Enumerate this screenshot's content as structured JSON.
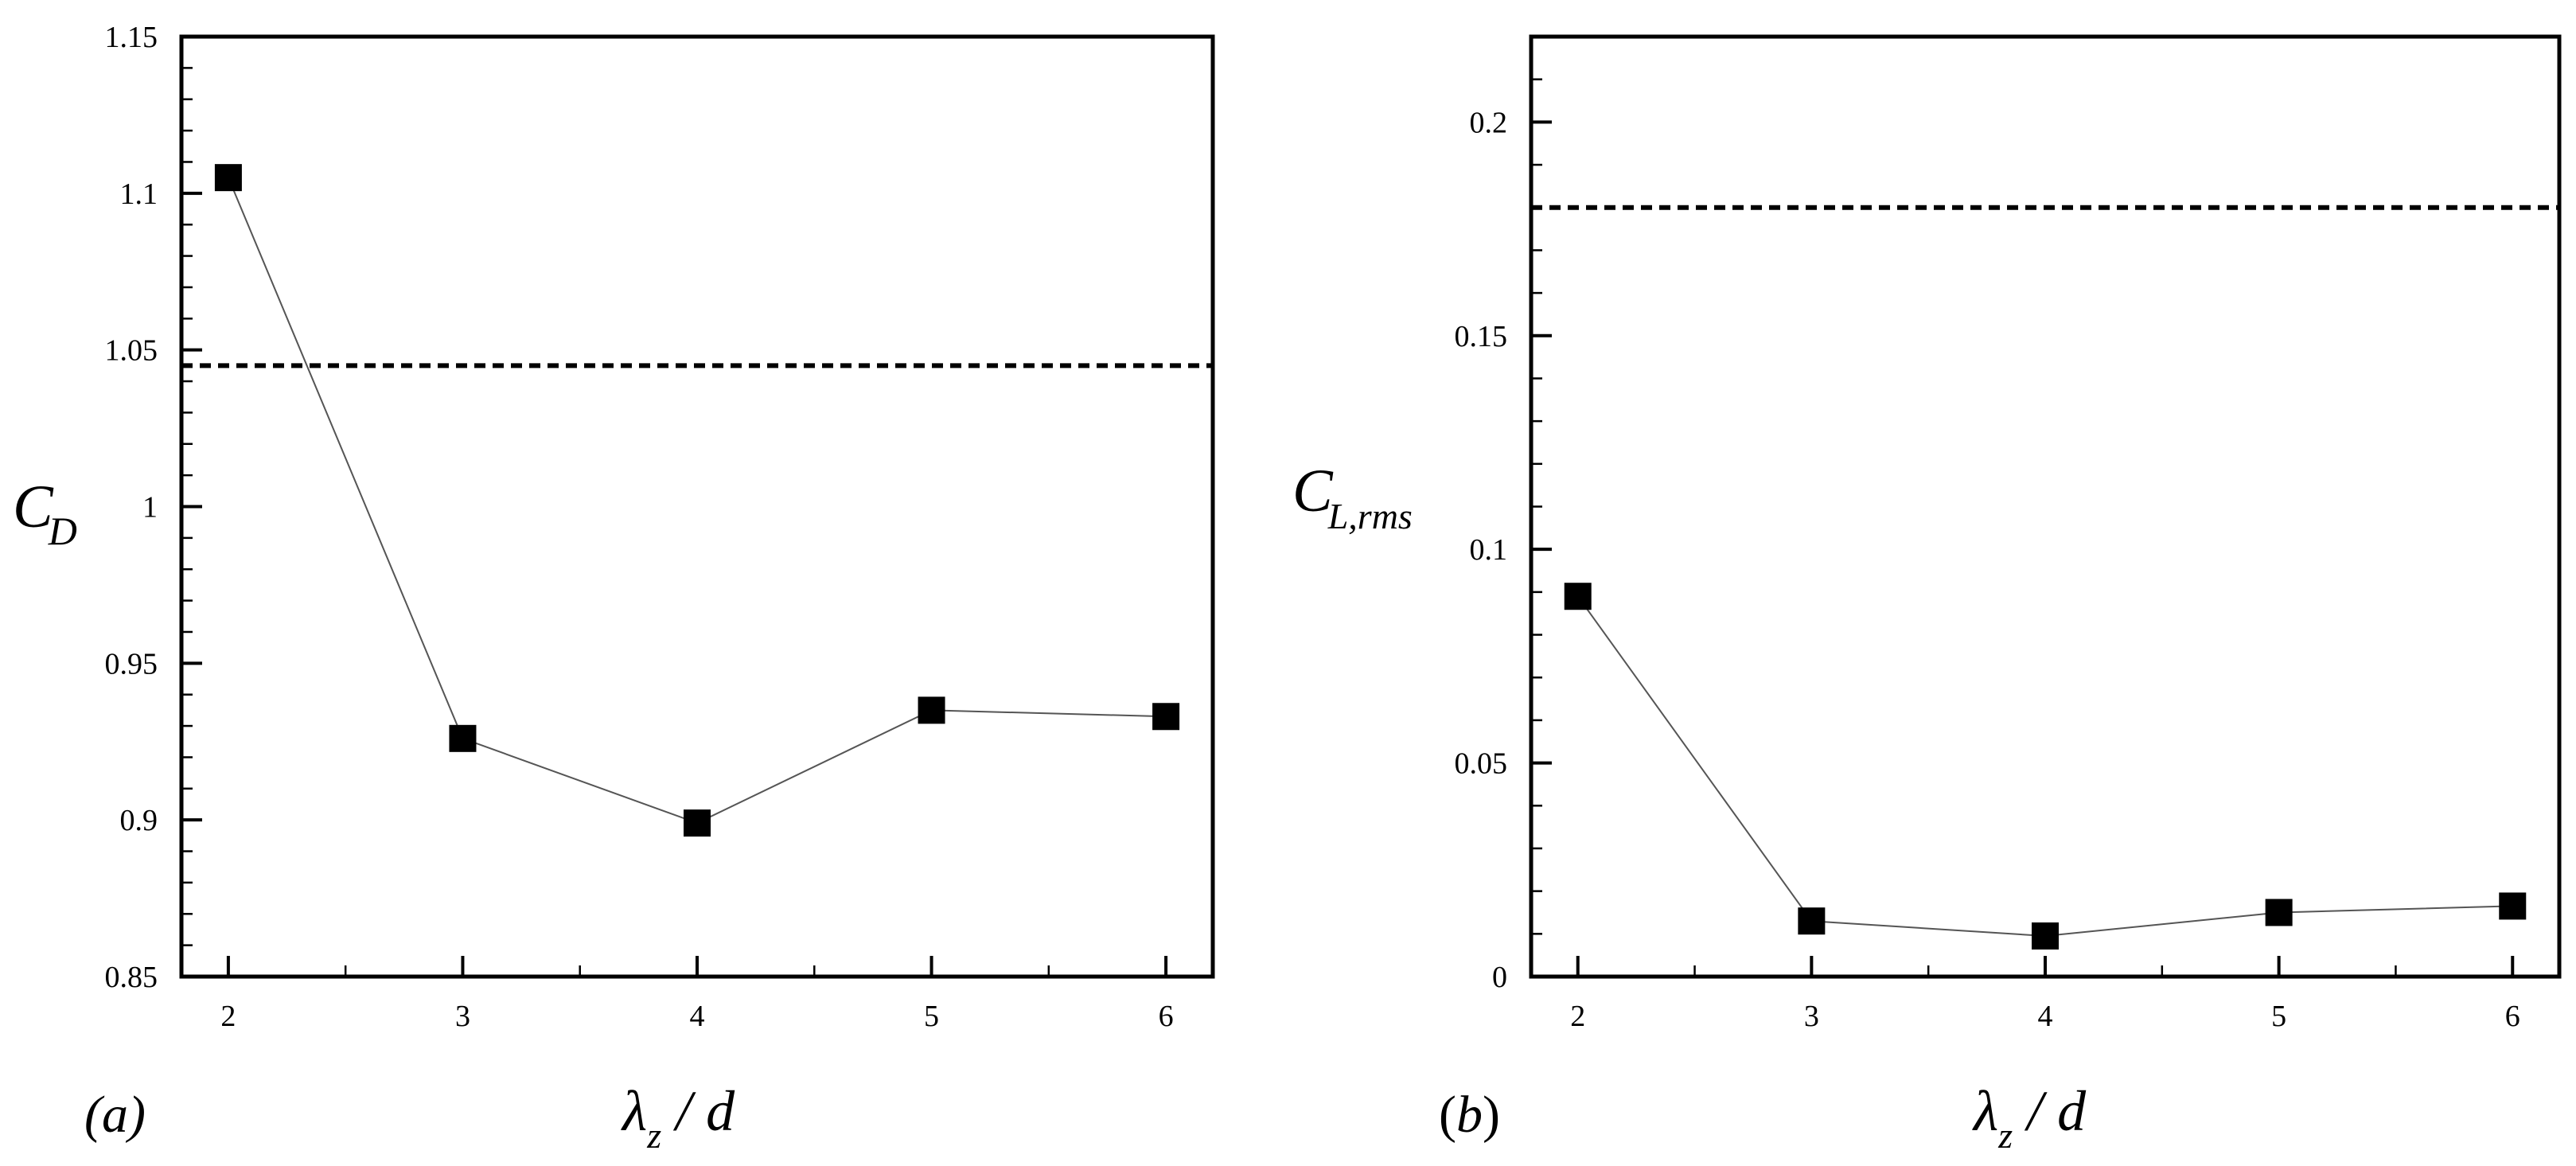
{
  "chart_data": [
    {
      "type": "line",
      "panel_label": "(a)",
      "x": [
        2,
        3,
        4,
        5,
        6
      ],
      "values": [
        1.105,
        0.926,
        0.899,
        0.935,
        0.933
      ],
      "reference_line": 1.045,
      "xlim": [
        1.8,
        6.2
      ],
      "ylim": [
        0.85,
        1.15
      ],
      "xticks": [
        "2",
        "3",
        "4",
        "5",
        "6"
      ],
      "yticks": [
        "0.85",
        "0.9",
        "0.95",
        "1",
        "1.05",
        "1.1",
        "1.15"
      ],
      "ylabel_main": "C",
      "ylabel_sub": "D",
      "xlabel_main": "λ",
      "xlabel_sub": "z",
      "xlabel_tail": " / d",
      "marker": "square",
      "grid": false
    },
    {
      "type": "line",
      "panel_label": "(b)",
      "x": [
        2,
        3,
        4,
        5,
        6
      ],
      "values": [
        0.089,
        0.013,
        0.0095,
        0.015,
        0.0165
      ],
      "reference_line": 0.18,
      "xlim": [
        1.8,
        6.2
      ],
      "ylim": [
        0,
        0.22
      ],
      "xticks": [
        "2",
        "3",
        "4",
        "5",
        "6"
      ],
      "yticks": [
        "0",
        "0.05",
        "0.1",
        "0.15",
        "0.2"
      ],
      "ylabel_main": "C",
      "ylabel_sub": "L,rms",
      "xlabel_main": "λ",
      "xlabel_sub": "z",
      "xlabel_tail": " / d",
      "marker": "square",
      "grid": false
    }
  ]
}
